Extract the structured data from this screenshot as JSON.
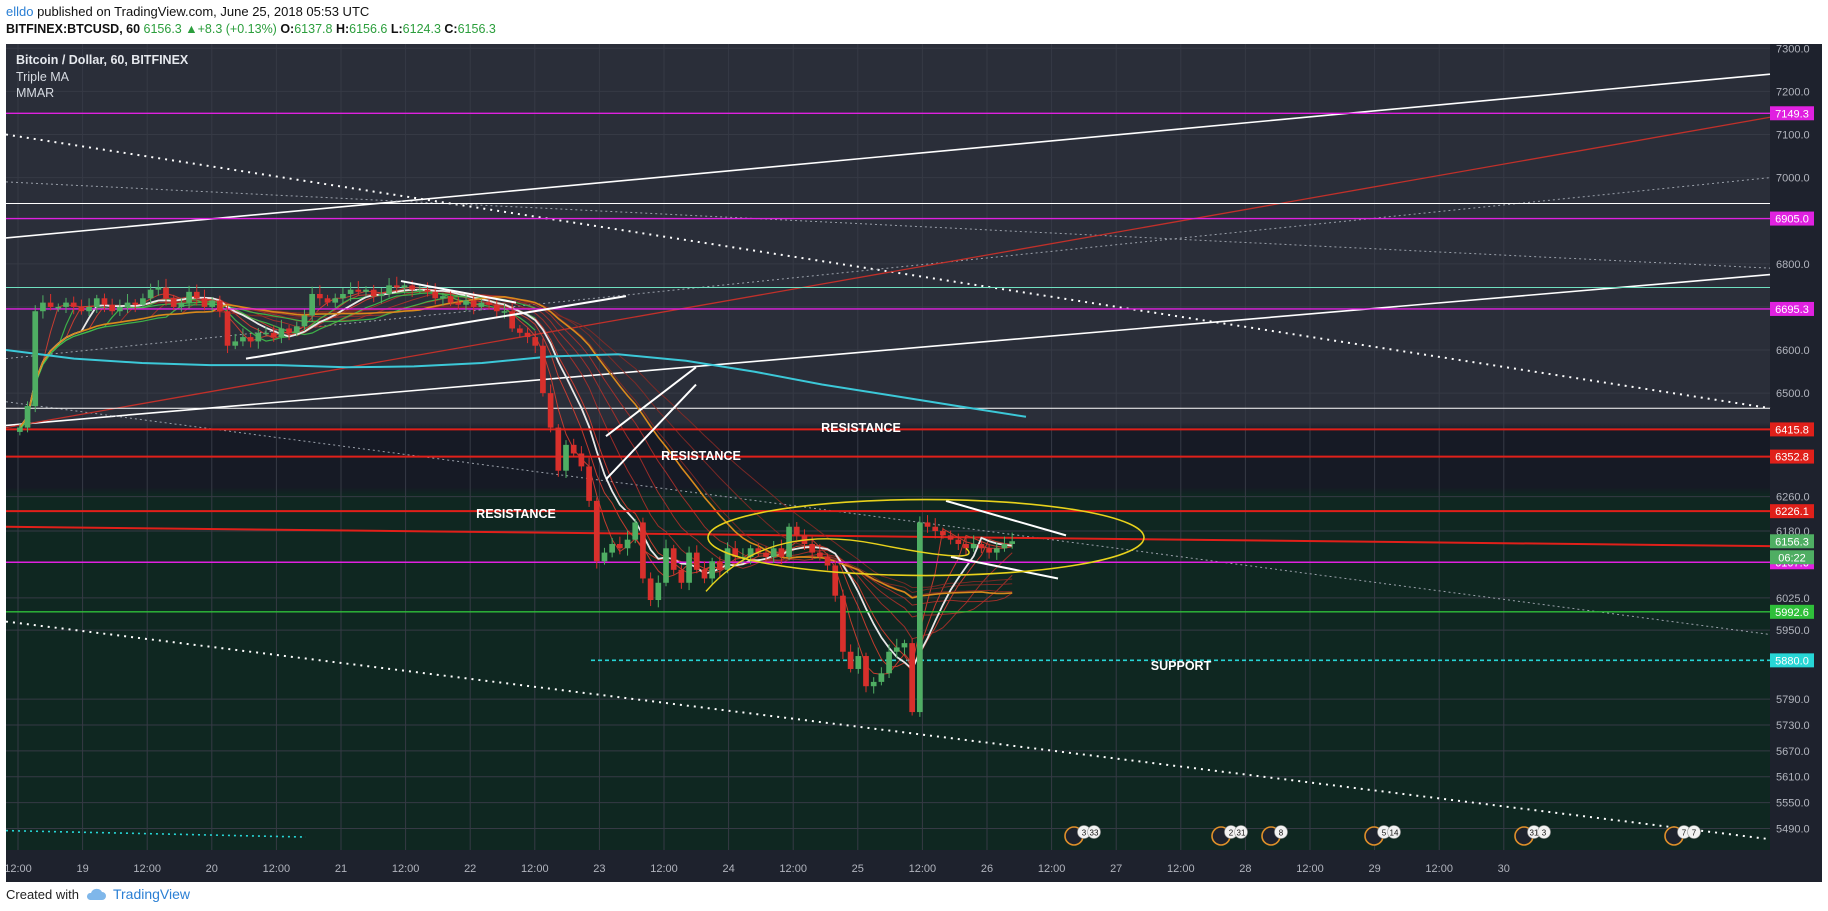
{
  "header": {
    "user": "elldo",
    "published": " published on TradingView.com, June 25, 2018 05:53 UTC"
  },
  "ohlc": {
    "symbol": "BITFINEX:BTCUSD, 60",
    "last": "6156.3",
    "change": "+8.3 (+0.13%)",
    "o_label": "O:",
    "o": "6137.8",
    "h_label": "H:",
    "h": "6156.6",
    "l_label": "L:",
    "l": "6124.3",
    "c_label": "C:",
    "c": "6156.3"
  },
  "legend": {
    "title": "Bitcoin / Dollar, 60, BITFINEX",
    "indicator1": "Triple MA",
    "indicator2": "MMAR"
  },
  "footer": {
    "created_with": "Created with",
    "brand": "TradingView",
    "brand_icon": "cloud-icon"
  },
  "colors": {
    "bg_top": "#2a2e39",
    "bg_mid": "#161a25",
    "bg_bottom": "#0f2721",
    "resistance": "#e0201a",
    "support_green": "#2fbf3a",
    "support_cyan": "#27d6d6",
    "magenta": "#e021e0",
    "up": "#4fae63",
    "down": "#d8302c"
  },
  "chart_data": {
    "type": "candlestick",
    "y_axis": {
      "min": 5440,
      "max": 7310,
      "ticks": [
        "7300.0",
        "7200.0",
        "7100.0",
        "7000.0",
        "6800.0",
        "6700.0",
        "6600.0",
        "6500.0",
        "6260.0",
        "6180.0",
        "6025.0",
        "5950.0",
        "5790.0",
        "5730.0",
        "5670.0",
        "5610.0",
        "5550.0",
        "5490.0"
      ]
    },
    "x_axis": {
      "ticks": [
        "12:00",
        "19",
        "12:00",
        "20",
        "12:00",
        "21",
        "12:00",
        "22",
        "12:00",
        "23",
        "12:00",
        "24",
        "12:00",
        "25",
        "12:00",
        "26",
        "12:00",
        "27",
        "12:00",
        "28",
        "12:00",
        "29",
        "12:00",
        "30"
      ]
    },
    "horizontal_levels": [
      {
        "price": 7149.3,
        "label": "7149.3",
        "color": "#e021e0"
      },
      {
        "price": 6905.0,
        "label": "6905.0",
        "color": "#e021e0"
      },
      {
        "price": 6695.3,
        "label": "6695.3",
        "color": "#e021e0"
      },
      {
        "price": 6415.8,
        "label": "6415.8",
        "color": "#e0201a"
      },
      {
        "price": 6352.8,
        "label": "6352.8",
        "color": "#e0201a"
      },
      {
        "price": 6226.1,
        "label": "6226.1",
        "color": "#e0201a"
      },
      {
        "price": 6156.3,
        "label": "6156.3",
        "color": "#4fae63"
      },
      {
        "price": 6107.6,
        "label": "6107.6",
        "color": "#e021e0"
      },
      {
        "price": 5992.6,
        "label": "5992.6",
        "color": "#2fbf3a"
      },
      {
        "price": 5880.0,
        "label": "5880.0",
        "color": "#27d6d6"
      }
    ],
    "countdown": "06:22",
    "annotations": [
      {
        "text": "RESISTANCE",
        "price": 6410,
        "x_label": "24"
      },
      {
        "text": "RESISTANCE",
        "price": 6345,
        "x_label": "23"
      },
      {
        "text": "RESISTANCE",
        "price": 6210,
        "x_label": "22"
      },
      {
        "text": "SUPPORT",
        "price": 5858,
        "x_label": "26"
      }
    ],
    "events": [
      {
        "x_label": "12:00 (25)",
        "counts": [
          "3",
          "33"
        ]
      },
      {
        "x_label": "12:00 (26)",
        "counts": [
          "2",
          "31"
        ]
      },
      {
        "x_label": "27",
        "counts": [
          "8"
        ]
      },
      {
        "x_label": "12:00 (27)",
        "counts": [
          "5",
          "14"
        ]
      },
      {
        "x_label": "12:00 (28)",
        "counts": [
          "31",
          "3"
        ]
      },
      {
        "x_label": "12:00 (29)",
        "counts": [
          "7",
          "7"
        ]
      }
    ],
    "candles_close": [
      6420,
      6470,
      6690,
      6710,
      6700,
      6700,
      6710,
      6700,
      6690,
      6700,
      6720,
      6705,
      6690,
      6700,
      6710,
      6705,
      6720,
      6740,
      6745,
      6720,
      6700,
      6710,
      6735,
      6720,
      6700,
      6715,
      6690,
      6610,
      6620,
      6630,
      6620,
      6640,
      6640,
      6630,
      6650,
      6640,
      6655,
      6680,
      6730,
      6720,
      6710,
      6720,
      6730,
      6740,
      6735,
      6740,
      6725,
      6730,
      6750,
      6745,
      6750,
      6740,
      6740,
      6735,
      6720,
      6725,
      6710,
      6705,
      6715,
      6700,
      6710,
      6705,
      6690,
      6690,
      6650,
      6640,
      6630,
      6610,
      6500,
      6420,
      6320,
      6380,
      6360,
      6330,
      6250,
      6110,
      6130,
      6150,
      6140,
      6160,
      6200,
      6070,
      6020,
      6060,
      6140,
      6090,
      6060,
      6130,
      6090,
      6070,
      6110,
      6090,
      6140,
      6120,
      6120,
      6140,
      6130,
      6120,
      6140,
      6120,
      6190,
      6170,
      6150,
      6130,
      6120,
      6100,
      6030,
      5900,
      5860,
      5890,
      5820,
      5830,
      5850,
      5900,
      5910,
      5920,
      5760,
      6200,
      6190,
      6180,
      6170,
      6160,
      6150,
      6140,
      6150,
      6140,
      6130,
      6140,
      6150,
      6156.3
    ],
    "moving_averages": {
      "cyan_long": [
        6600,
        6580,
        6570,
        6565,
        6565,
        6560,
        6562,
        6570,
        6585,
        6590,
        6575,
        6550,
        6520,
        6495,
        6470,
        6445
      ]
    }
  }
}
